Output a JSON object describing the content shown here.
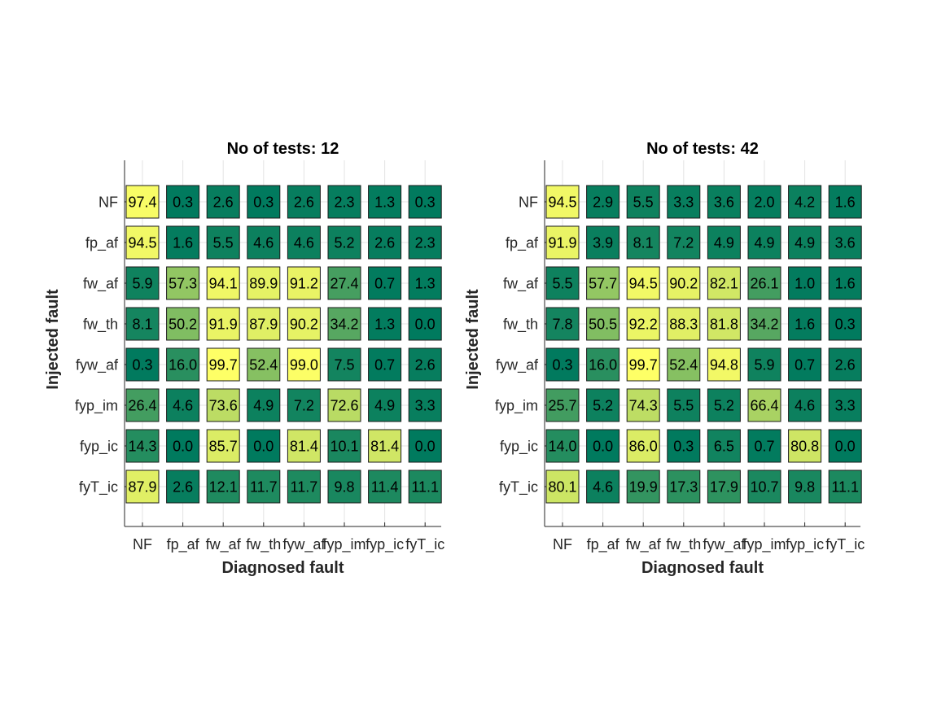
{
  "chart_data": [
    {
      "type": "heatmap",
      "title": "No of tests: 12",
      "xlabel": "Diagnosed fault",
      "ylabel": "Injected fault",
      "x_categories": [
        "NF",
        "fp_af",
        "fw_af",
        "fw_th",
        "fyw_af",
        "fyp_im",
        "fyp_ic",
        "fyT_ic"
      ],
      "y_categories": [
        "NF",
        "fp_af",
        "fw_af",
        "fw_th",
        "fyw_af",
        "fyp_im",
        "fyp_ic",
        "fyT_ic"
      ],
      "values": [
        [
          97.4,
          0.3,
          2.6,
          0.3,
          2.6,
          2.3,
          1.3,
          0.3
        ],
        [
          94.5,
          1.6,
          5.5,
          4.6,
          4.6,
          5.2,
          2.6,
          2.3
        ],
        [
          5.9,
          57.3,
          94.1,
          89.9,
          91.2,
          27.4,
          0.7,
          1.3
        ],
        [
          8.1,
          50.2,
          91.9,
          87.9,
          90.2,
          34.2,
          1.3,
          0.0
        ],
        [
          0.3,
          16.0,
          99.7,
          52.4,
          99.0,
          7.5,
          0.7,
          2.6
        ],
        [
          26.4,
          4.6,
          73.6,
          4.9,
          7.2,
          72.6,
          4.9,
          3.3
        ],
        [
          14.3,
          0.0,
          85.7,
          0.0,
          81.4,
          10.1,
          81.4,
          0.0
        ],
        [
          87.9,
          2.6,
          12.1,
          11.7,
          11.7,
          9.8,
          11.4,
          11.1
        ]
      ],
      "value_range": [
        0,
        100
      ],
      "colormap": [
        "#007a5e",
        "#ffff66"
      ],
      "grid": true
    },
    {
      "type": "heatmap",
      "title": "No of tests: 42",
      "xlabel": "Diagnosed fault",
      "ylabel": "Injected fault",
      "x_categories": [
        "NF",
        "fp_af",
        "fw_af",
        "fw_th",
        "fyw_af",
        "fyp_im",
        "fyp_ic",
        "fyT_ic"
      ],
      "y_categories": [
        "NF",
        "fp_af",
        "fw_af",
        "fw_th",
        "fyw_af",
        "fyp_im",
        "fyp_ic",
        "fyT_ic"
      ],
      "values": [
        [
          94.5,
          2.9,
          5.5,
          3.3,
          3.6,
          2.0,
          4.2,
          1.6
        ],
        [
          91.9,
          3.9,
          8.1,
          7.2,
          4.9,
          4.9,
          4.9,
          3.6
        ],
        [
          5.5,
          57.7,
          94.5,
          90.2,
          82.1,
          26.1,
          1.0,
          1.6
        ],
        [
          7.8,
          50.5,
          92.2,
          88.3,
          81.8,
          34.2,
          1.6,
          0.3
        ],
        [
          0.3,
          16.0,
          99.7,
          52.4,
          94.8,
          5.9,
          0.7,
          2.6
        ],
        [
          25.7,
          5.2,
          74.3,
          5.5,
          5.2,
          66.4,
          4.6,
          3.3
        ],
        [
          14.0,
          0.0,
          86.0,
          0.3,
          6.5,
          0.7,
          80.8,
          0.0
        ],
        [
          80.1,
          4.6,
          19.9,
          17.3,
          17.9,
          10.7,
          9.8,
          11.1
        ]
      ],
      "value_range": [
        0,
        100
      ],
      "colormap": [
        "#007a5e",
        "#ffff66"
      ],
      "grid": true
    }
  ]
}
